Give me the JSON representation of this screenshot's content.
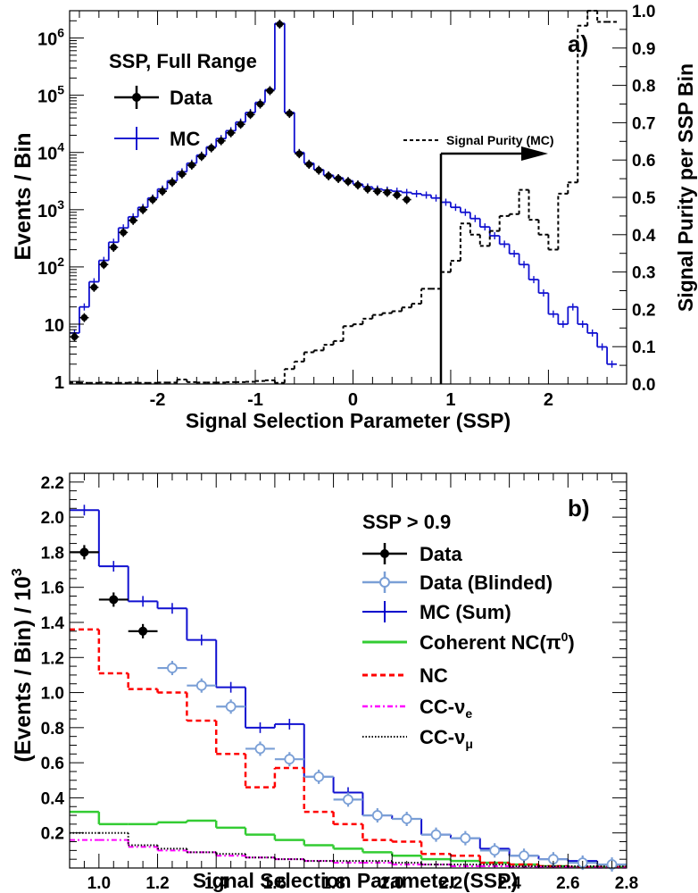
{
  "chart_data": [
    {
      "id": "a",
      "type": "line",
      "panel_label": "a)",
      "title": "SSP, Full Range",
      "xlabel": "Signal Selection Parameter (SSP)",
      "ylabel": "Events / Bin",
      "y2label": "Signal Purity per SSP Bin",
      "xlim": [
        -2.9,
        2.8
      ],
      "yscale": "log",
      "ylim": [
        0.9,
        3000000
      ],
      "y2lim": [
        0.0,
        1.0
      ],
      "x_ticks": [
        {
          "v": -2,
          "label": "-2"
        },
        {
          "v": -1,
          "label": "-1"
        },
        {
          "v": 0,
          "label": "0"
        },
        {
          "v": 1,
          "label": "1"
        },
        {
          "v": 2,
          "label": "2"
        }
      ],
      "y_ticks": [
        {
          "v": 1,
          "base": "1",
          "exp": ""
        },
        {
          "v": 10,
          "base": "10",
          "exp": ""
        },
        {
          "v": 100,
          "base": "10",
          "exp": "2"
        },
        {
          "v": 1000,
          "base": "10",
          "exp": "3"
        },
        {
          "v": 10000,
          "base": "10",
          "exp": "4"
        },
        {
          "v": 100000,
          "base": "10",
          "exp": "5"
        },
        {
          "v": 1000000,
          "base": "10",
          "exp": "6"
        }
      ],
      "y2_ticks": [
        {
          "v": 0.0,
          "label": "0.0"
        },
        {
          "v": 0.1,
          "label": "0.1"
        },
        {
          "v": 0.2,
          "label": "0.2"
        },
        {
          "v": 0.3,
          "label": "0.3"
        },
        {
          "v": 0.4,
          "label": "0.4"
        },
        {
          "v": 0.5,
          "label": "0.5"
        },
        {
          "v": 0.6,
          "label": "0.6"
        },
        {
          "v": 0.7,
          "label": "0.7"
        },
        {
          "v": 0.8,
          "label": "0.8"
        },
        {
          "v": 0.9,
          "label": "0.9"
        },
        {
          "v": 1.0,
          "label": "1.0"
        }
      ],
      "legend": [
        {
          "label": "Data",
          "color": "#000000",
          "style": "data"
        },
        {
          "label": "MC",
          "color": "#0000cc",
          "style": "mc"
        }
      ],
      "purity_label": "Signal Purity (MC)",
      "cut_x": 0.9,
      "bin_width": 0.1,
      "series": [
        {
          "name": "MC",
          "kind": "hist",
          "color": "#1010d0",
          "dash": "",
          "width": 1.8,
          "x0": -2.9,
          "values": [
            7,
            20,
            55,
            130,
            270,
            480,
            750,
            1100,
            1600,
            2300,
            3200,
            4600,
            6500,
            9000,
            12500,
            17500,
            24000,
            34000,
            50000,
            75000,
            125000,
            1800000,
            50000,
            10000,
            6500,
            5000,
            4000,
            3600,
            3200,
            2800,
            2500,
            2300,
            2200,
            2100,
            2000,
            1900,
            1800,
            1600,
            1350,
            1100,
            900,
            700,
            500,
            350,
            250,
            170,
            110,
            60,
            35,
            15,
            10,
            20,
            10,
            7,
            4,
            2
          ]
        },
        {
          "name": "Data",
          "kind": "points",
          "color": "#000000",
          "x0": -2.85,
          "values": [
            6,
            13,
            44,
            110,
            220,
            400,
            650,
            1000,
            1500,
            2100,
            3000,
            4200,
            6000,
            8500,
            12000,
            16000,
            22000,
            31000,
            46000,
            70000,
            120000,
            1750000,
            48000,
            9500,
            6200,
            4900,
            3900,
            3500,
            3100,
            2700,
            2300,
            2100,
            2000,
            1800,
            1500
          ]
        },
        {
          "name": "Signal Purity (MC)",
          "kind": "hist",
          "axis": "y2",
          "color": "#000000",
          "dash": "4,3",
          "width": 2,
          "x0": -2.9,
          "values": [
            0.004,
            0.003,
            0.003,
            0.004,
            0.003,
            0.003,
            0.004,
            0.003,
            0.003,
            0.004,
            0.004,
            0.012,
            0.005,
            0.004,
            0.004,
            0.004,
            0.005,
            0.005,
            0.006,
            0.008,
            0.01,
            0.003,
            0.04,
            0.06,
            0.085,
            0.09,
            0.105,
            0.115,
            0.155,
            0.16,
            0.175,
            0.185,
            0.19,
            0.195,
            0.205,
            0.215,
            0.255,
            0.255,
            0.3,
            0.33,
            0.43,
            0.4,
            0.37,
            0.41,
            0.45,
            0.455,
            0.52,
            0.44,
            0.4,
            0.36,
            0.51,
            0.54,
            0.96,
            1.0,
            0.97,
            0.97
          ]
        }
      ]
    },
    {
      "id": "b",
      "type": "line",
      "panel_label": "b)",
      "title": "SSP > 0.9",
      "xlabel": "Signal Selection Parameter (SSP)",
      "ylabel": "(Events / Bin) / 10",
      "ylabel_exp": "3",
      "xlim": [
        0.9,
        2.8
      ],
      "ylim": [
        0.0,
        2.25
      ],
      "x_ticks": [
        {
          "v": 1.0,
          "label": "1.0"
        },
        {
          "v": 1.2,
          "label": "1.2"
        },
        {
          "v": 1.4,
          "label": "1.4"
        },
        {
          "v": 1.6,
          "label": "1.6"
        },
        {
          "v": 1.8,
          "label": "1.8"
        },
        {
          "v": 2.0,
          "label": "2.0"
        },
        {
          "v": 2.2,
          "label": "2.2"
        },
        {
          "v": 2.4,
          "label": "2.4"
        },
        {
          "v": 2.6,
          "label": "2.6"
        },
        {
          "v": 2.8,
          "label": "2.8"
        }
      ],
      "y_ticks": [
        {
          "v": 0.2,
          "label": "0.2"
        },
        {
          "v": 0.4,
          "label": "0.4"
        },
        {
          "v": 0.6,
          "label": "0.6"
        },
        {
          "v": 0.8,
          "label": "0.8"
        },
        {
          "v": 1.0,
          "label": "1.0"
        },
        {
          "v": 1.2,
          "label": "1.2"
        },
        {
          "v": 1.4,
          "label": "1.4"
        },
        {
          "v": 1.6,
          "label": "1.6"
        },
        {
          "v": 1.8,
          "label": "1.8"
        },
        {
          "v": 2.0,
          "label": "2.0"
        },
        {
          "v": 2.2,
          "label": "2.2"
        }
      ],
      "legend": [
        {
          "label": "Data",
          "color": "#000000",
          "style": "data"
        },
        {
          "label": "Data (Blinded)",
          "color": "#7a9fd6",
          "style": "blinded"
        },
        {
          "label": "MC (Sum)",
          "color": "#0000cc",
          "style": "mc"
        },
        {
          "label": "Coherent NC(π",
          "sup": "0",
          "close": ")",
          "color": "#33cc33",
          "style": "solid"
        },
        {
          "label": "NC",
          "color": "#ff0000",
          "style": "dashed"
        },
        {
          "label": "CC-ν",
          "sub": "e",
          "color": "#ff00ff",
          "style": "dashdot"
        },
        {
          "label": "CC-ν",
          "sub": "μ",
          "color": "#000000",
          "style": "dotted"
        }
      ],
      "bin_width": 0.1,
      "series": [
        {
          "name": "MC (Sum)",
          "kind": "hist",
          "color": "#1010d0",
          "dash": "",
          "width": 2,
          "x0": 0.9,
          "values": [
            2.04,
            1.72,
            1.52,
            1.48,
            1.3,
            1.03,
            0.8,
            0.82,
            0.52,
            0.43,
            0.3,
            0.28,
            0.19,
            0.17,
            0.11,
            0.07,
            0.05,
            0.04,
            0.02
          ]
        },
        {
          "name": "Coherent NC(pi0)",
          "kind": "hist",
          "color": "#33cc33",
          "dash": "",
          "width": 2.5,
          "x0": 0.9,
          "values": [
            0.32,
            0.25,
            0.25,
            0.26,
            0.27,
            0.23,
            0.19,
            0.16,
            0.13,
            0.11,
            0.09,
            0.07,
            0.05,
            0.04,
            0.03,
            0.02,
            0.01,
            0.005,
            0.005
          ]
        },
        {
          "name": "NC",
          "kind": "hist",
          "color": "#ff0000",
          "dash": "6,4",
          "width": 2.5,
          "x0": 0.9,
          "values": [
            1.36,
            1.11,
            1.02,
            1.0,
            0.84,
            0.65,
            0.46,
            0.57,
            0.32,
            0.25,
            0.16,
            0.15,
            0.08,
            0.07,
            0.03,
            0.02,
            0.01,
            0.005,
            0.005
          ]
        },
        {
          "name": "CC-nu_e",
          "kind": "hist",
          "color": "#ff00ff",
          "dash": "6,3,2,3",
          "width": 2,
          "x0": 0.9,
          "values": [
            0.16,
            0.16,
            0.12,
            0.1,
            0.09,
            0.07,
            0.06,
            0.05,
            0.04,
            0.03,
            0.03,
            0.02,
            0.02,
            0.01,
            0.01,
            0.005,
            0.005,
            0.003,
            0.002
          ]
        },
        {
          "name": "CC-nu_mu",
          "kind": "hist",
          "color": "#000000",
          "dash": "1.5,2",
          "width": 2,
          "x0": 0.9,
          "values": [
            0.2,
            0.2,
            0.13,
            0.11,
            0.09,
            0.08,
            0.06,
            0.05,
            0.04,
            0.04,
            0.04,
            0.03,
            0.02,
            0.02,
            0.02,
            0.01,
            0.01,
            0.01,
            0.01
          ]
        },
        {
          "name": "Data",
          "kind": "points",
          "color": "#000000",
          "marker": "filled",
          "x": [
            0.95,
            1.05,
            1.15
          ],
          "values": [
            1.8,
            1.53,
            1.35
          ]
        },
        {
          "name": "Data (Blinded)",
          "kind": "points",
          "color": "#7a9fd6",
          "marker": "open",
          "x": [
            1.25,
            1.35,
            1.45,
            1.55,
            1.65,
            1.75,
            1.85,
            1.95,
            2.05,
            2.15,
            2.25,
            2.35,
            2.45,
            2.55,
            2.65,
            2.75
          ],
          "values": [
            1.14,
            1.04,
            0.92,
            0.68,
            0.62,
            0.52,
            0.39,
            0.3,
            0.28,
            0.19,
            0.17,
            0.1,
            0.07,
            0.05,
            0.03,
            0.02
          ]
        }
      ]
    }
  ]
}
